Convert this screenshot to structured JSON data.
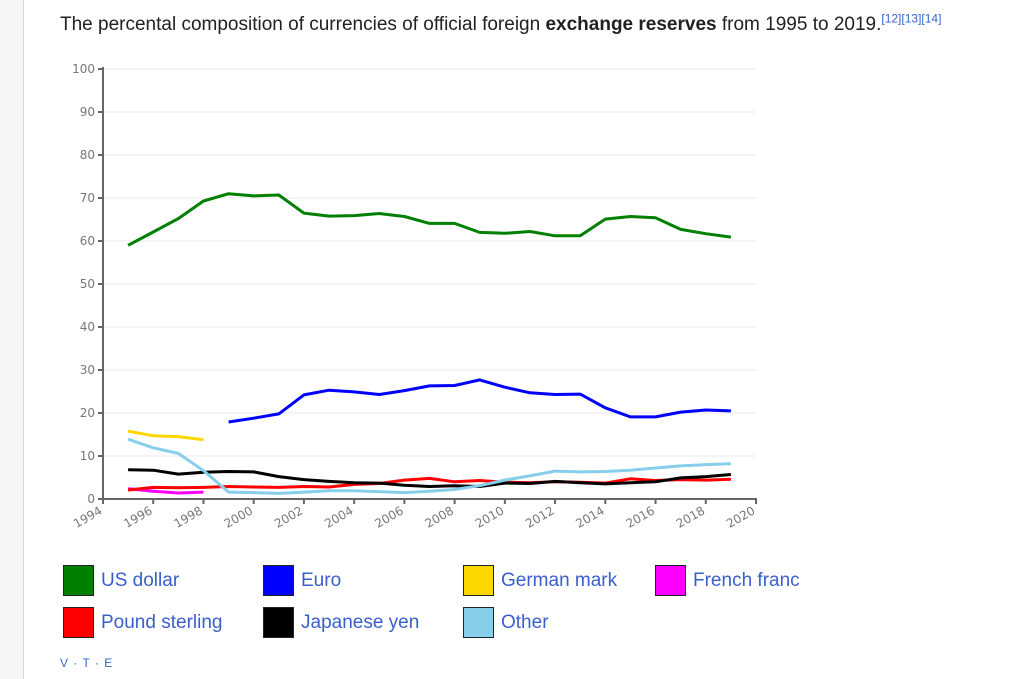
{
  "caption": {
    "pre": "The percental composition of currencies of official foreign ",
    "bold": "exchange reserves",
    "post": " from 1995 to 2019.",
    "refs": "[12][13][14]"
  },
  "chart_data": {
    "type": "line",
    "title": "The percental composition of currencies of official foreign exchange reserves from 1995 to 2019.",
    "xlabel": "",
    "ylabel": "",
    "xlim": [
      1994,
      2020
    ],
    "ylim": [
      0,
      100
    ],
    "xticks": [
      "1994",
      "1996",
      "1998",
      "2000",
      "2002",
      "2004",
      "2006",
      "2008",
      "2010",
      "2012",
      "2014",
      "2016",
      "2018",
      "2020"
    ],
    "yticks": [
      "0",
      "10",
      "20",
      "30",
      "40",
      "50",
      "60",
      "70",
      "80",
      "90",
      "100"
    ],
    "grid": true,
    "legend_placement": "bottom",
    "series": [
      {
        "name": "US dollar",
        "color": "#008000",
        "start": 1995,
        "values": [
          59.0,
          62.1,
          65.2,
          69.3,
          71.0,
          70.5,
          70.7,
          66.5,
          65.8,
          65.9,
          66.4,
          65.7,
          64.1,
          64.1,
          62.0,
          61.8,
          62.2,
          61.2,
          61.2,
          65.1,
          65.7,
          65.4,
          62.7,
          61.7,
          60.9
        ]
      },
      {
        "name": "Euro",
        "color": "#0000ff",
        "start": 1999,
        "values": [
          17.9,
          18.8,
          19.8,
          24.2,
          25.3,
          24.9,
          24.3,
          25.2,
          26.3,
          26.4,
          27.7,
          26.0,
          24.7,
          24.3,
          24.4,
          21.2,
          19.1,
          19.1,
          20.2,
          20.7,
          20.5
        ]
      },
      {
        "name": "German mark",
        "color": "#ffd700",
        "start": 1995,
        "values": [
          15.8,
          14.7,
          14.5,
          13.8
        ]
      },
      {
        "name": "French franc",
        "color": "#ff00ff",
        "start": 1995,
        "values": [
          2.4,
          1.8,
          1.4,
          1.6
        ]
      },
      {
        "name": "Pound sterling",
        "color": "#ff0000",
        "start": 1995,
        "values": [
          2.1,
          2.7,
          2.6,
          2.7,
          2.9,
          2.8,
          2.7,
          2.9,
          2.8,
          3.4,
          3.6,
          4.4,
          4.8,
          4.0,
          4.3,
          3.9,
          3.8,
          4.0,
          3.9,
          3.7,
          4.7,
          4.3,
          4.5,
          4.4,
          4.6
        ]
      },
      {
        "name": "Japanese yen",
        "color": "#000000",
        "start": 1995,
        "values": [
          6.8,
          6.7,
          5.8,
          6.2,
          6.4,
          6.3,
          5.2,
          4.5,
          4.1,
          3.8,
          3.7,
          3.2,
          2.9,
          3.1,
          2.9,
          3.7,
          3.6,
          4.1,
          3.8,
          3.5,
          3.8,
          4.0,
          4.9,
          5.2,
          5.7
        ]
      },
      {
        "name": "Other",
        "color": "#87ceeb",
        "start": 1995,
        "values": [
          13.9,
          11.9,
          10.6,
          6.6,
          1.6,
          1.5,
          1.3,
          1.6,
          1.9,
          1.9,
          1.7,
          1.5,
          1.8,
          2.2,
          3.1,
          4.4,
          5.4,
          6.5,
          6.3,
          6.4,
          6.7,
          7.2,
          7.7,
          8.0,
          8.2
        ]
      }
    ]
  },
  "legend": [
    {
      "label": "US dollar",
      "color": "#008000"
    },
    {
      "label": "Euro",
      "color": "#0000ff"
    },
    {
      "label": "German mark",
      "color": "#ffd700"
    },
    {
      "label": "French franc",
      "color": "#ff00ff"
    },
    {
      "label": "Pound sterling",
      "color": "#ff0000"
    },
    {
      "label": "Japanese yen",
      "color": "#000000"
    },
    {
      "label": "Other",
      "color": "#87ceeb"
    }
  ],
  "footer": {
    "vte": "V · T · E"
  }
}
